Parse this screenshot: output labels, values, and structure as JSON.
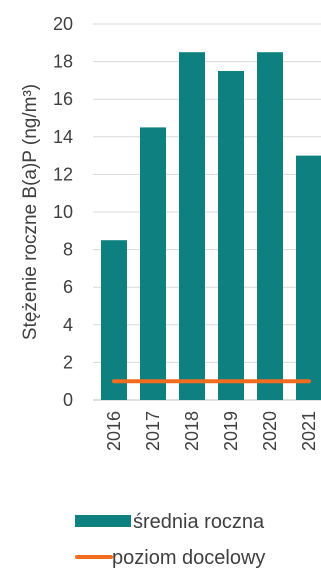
{
  "colors": {
    "bar": "#0E8080",
    "target_line": "#F26C1F",
    "grid": "#D9D9D9",
    "text": "#404040"
  },
  "chart_data": {
    "type": "bar",
    "categories": [
      "2016",
      "2017",
      "2018",
      "2019",
      "2020",
      "2021"
    ],
    "series": [
      {
        "name": "średnia roczna",
        "kind": "bar",
        "values": [
          8.5,
          14.5,
          18.5,
          17.5,
          18.5,
          13.0
        ]
      },
      {
        "name": "poziom docelowy",
        "kind": "line",
        "values": [
          1,
          1,
          1,
          1,
          1,
          1
        ]
      }
    ],
    "ylabel": "Stężenie roczne B(a)P (ng/m³)",
    "ylim": [
      0,
      20
    ],
    "yticks": [
      0,
      2,
      4,
      6,
      8,
      10,
      12,
      14,
      16,
      18,
      20
    ],
    "grid": true,
    "legend_position": "bottom"
  }
}
